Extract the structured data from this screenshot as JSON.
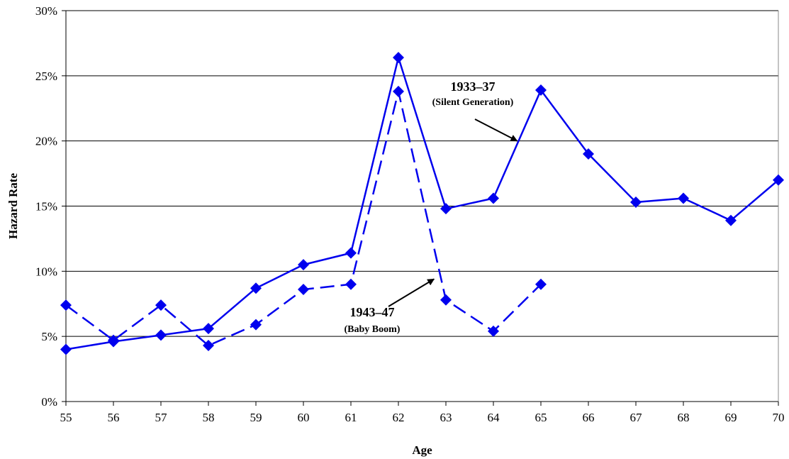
{
  "chart_data": {
    "type": "line",
    "xlabel": "Age",
    "ylabel": "Hazard Rate",
    "x": [
      55,
      56,
      57,
      58,
      59,
      60,
      61,
      62,
      63,
      64,
      65,
      66,
      67,
      68,
      69,
      70
    ],
    "xlim": [
      55,
      70
    ],
    "ylim": [
      0,
      30
    ],
    "y_tick_values": [
      0,
      5,
      10,
      15,
      20,
      25,
      30
    ],
    "y_tick_labels": [
      "0%",
      "5%",
      "10%",
      "15%",
      "20%",
      "25%",
      "30%"
    ],
    "x_tick_labels": [
      "55",
      "56",
      "57",
      "58",
      "59",
      "60",
      "61",
      "62",
      "63",
      "64",
      "65",
      "66",
      "67",
      "68",
      "69",
      "70"
    ],
    "grid": "horizontal",
    "legend": "none",
    "series": [
      {
        "style": "solid",
        "color": "#0000ee",
        "x": [
          55,
          56,
          57,
          58,
          59,
          60,
          61,
          62,
          63,
          64,
          65,
          66,
          67,
          68,
          69,
          70
        ],
        "values": [
          4.0,
          4.6,
          5.1,
          5.6,
          8.7,
          10.5,
          11.4,
          26.4,
          14.8,
          15.6,
          23.9,
          19.0,
          15.3,
          15.6,
          13.9,
          17.0
        ]
      },
      {
        "style": "dashed",
        "color": "#0000ee",
        "x": [
          55,
          56,
          57,
          58,
          59,
          60,
          61,
          62,
          63,
          64,
          65
        ],
        "values": [
          7.4,
          4.7,
          7.4,
          4.3,
          5.9,
          8.6,
          9.0,
          23.8,
          7.8,
          5.4,
          9.0
        ]
      }
    ],
    "annotations": [
      {
        "title": "1933–37",
        "subtitle": "(Silent Generation)",
        "arrow_to": {
          "x": 64.5,
          "y": 20.0
        }
      },
      {
        "title": "1943–47",
        "subtitle": "(Baby Boom)",
        "arrow_to": {
          "x": 62.75,
          "y": 9.4
        }
      }
    ]
  }
}
